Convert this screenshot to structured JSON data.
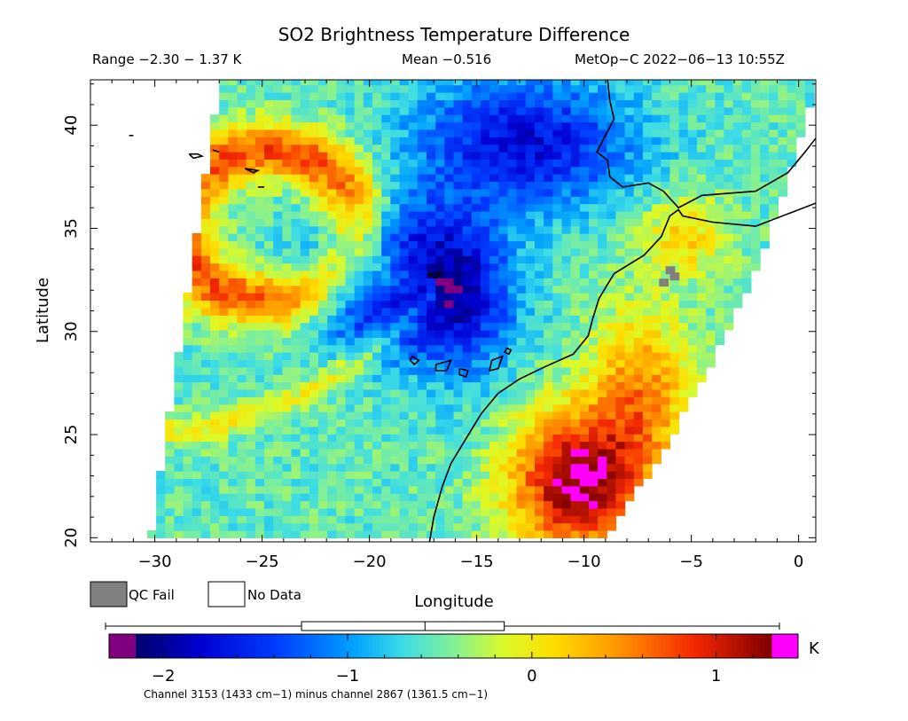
{
  "chart_data": {
    "type": "heatmap",
    "title": "SO2 Brightness Temperature Difference",
    "header": {
      "range": "Range −2.30 − 1.37 K",
      "mean": "Mean −0.516",
      "satellite": "MetOp−C 2022−06−13 10:55Z"
    },
    "xlabel": "Longitude",
    "ylabel": "Latitude",
    "xlim": [
      -33,
      0.8
    ],
    "ylim": [
      19.8,
      42.2
    ],
    "xticks": [
      -30,
      -25,
      -20,
      -15,
      -10,
      -5,
      0
    ],
    "xtick_labels": [
      "−30",
      "−25",
      "−20",
      "−15",
      "−10",
      "−5",
      "0"
    ],
    "yticks": [
      20,
      25,
      30,
      35,
      40
    ],
    "ytick_labels": [
      "20",
      "25",
      "30",
      "35",
      "40"
    ],
    "swath_corners": {
      "top_west": [
        -27.0,
        42.0
      ],
      "top_east": [
        0.8,
        42.0
      ],
      "bottom_west": [
        -30.2,
        20.0
      ],
      "bottom_east": [
        -8.9,
        20.0
      ]
    },
    "features": [
      {
        "name": "warm ring",
        "lon": -25.0,
        "lat": 35.0,
        "value": 1.0
      },
      {
        "name": "cold band",
        "lon": -17.0,
        "lat": 32.0,
        "value": -1.6
      },
      {
        "name": "cold north",
        "lon": -13.0,
        "lat": 40.0,
        "value": -1.8
      },
      {
        "name": "hot coastal",
        "lon": -11.0,
        "lat": 23.0,
        "value": 1.2
      },
      {
        "name": "hot coastal 2",
        "lon": -8.0,
        "lat": 27.0,
        "value": 0.9
      }
    ],
    "colorbar": {
      "min": -2.3,
      "max": 1.37,
      "ticks": [
        -2,
        -1,
        0,
        1
      ],
      "tick_labels": [
        "−2",
        "−1",
        "0",
        "1"
      ],
      "unit": "K",
      "under_color": "#800080",
      "over_color": "#ff00ff",
      "boxplot": {
        "whisker_low": -2.3,
        "q1": -1.25,
        "median": -0.58,
        "q3": -0.15,
        "whisker_high": 1.37
      },
      "caption": "Channel 3153 (1433 cm−1) minus channel 2867 (1361.5 cm−1)"
    },
    "legend": [
      {
        "label": "QC Fail",
        "color": "#808080"
      },
      {
        "label": "No Data",
        "color": "#ffffff"
      }
    ]
  }
}
